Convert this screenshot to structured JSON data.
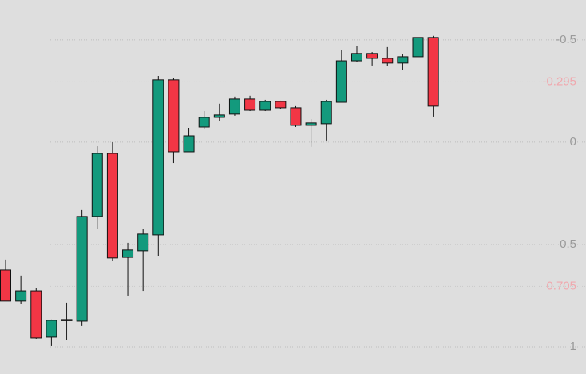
{
  "chart_data": {
    "type": "candlestick",
    "y_inverted": true,
    "ylim": [
      -0.695,
      1.133
    ],
    "yticks": [
      -0.5,
      0,
      0.5,
      1
    ],
    "price_lines": [
      -0.295,
      0.705
    ],
    "grid": true,
    "up_color": "#139a7d",
    "down_color": "#f23645",
    "doji_color": "#222222",
    "tick_color": "#9a9a9a",
    "price_line_color": "#f0a8ae",
    "open": [
      0.625,
      0.777,
      0.727,
      0.953,
      0.867,
      0.875,
      0.363,
      0.055,
      0.563,
      0.531,
      0.453,
      -0.305,
      0.047,
      -0.074,
      -0.121,
      -0.137,
      -0.211,
      -0.156,
      -0.199,
      -0.168,
      -0.082,
      -0.09,
      -0.195,
      -0.398,
      -0.434,
      -0.41,
      -0.387,
      -0.418,
      -0.512
    ],
    "close": [
      0.777,
      0.727,
      0.957,
      0.871,
      0.867,
      0.363,
      0.055,
      0.566,
      0.527,
      0.449,
      -0.305,
      0.047,
      -0.031,
      -0.121,
      -0.133,
      -0.211,
      -0.156,
      -0.199,
      -0.168,
      -0.082,
      -0.094,
      -0.199,
      -0.398,
      -0.434,
      -0.41,
      -0.387,
      -0.418,
      -0.512,
      -0.176
    ],
    "low": [
      0.574,
      0.652,
      0.715,
      0.867,
      0.785,
      0.332,
      0.02,
      0.0,
      0.492,
      0.426,
      -0.324,
      -0.316,
      -0.07,
      -0.152,
      -0.188,
      -0.223,
      -0.227,
      -0.207,
      -0.203,
      -0.176,
      -0.113,
      -0.207,
      -0.449,
      -0.469,
      -0.441,
      -0.465,
      -0.43,
      -0.52,
      -0.52
    ],
    "high": [
      0.777,
      0.793,
      0.961,
      0.996,
      0.965,
      0.898,
      0.426,
      0.582,
      0.75,
      0.727,
      0.555,
      0.102,
      0.047,
      -0.066,
      -0.102,
      -0.129,
      -0.152,
      -0.152,
      -0.16,
      -0.074,
      0.023,
      -0.008,
      -0.195,
      -0.391,
      -0.375,
      -0.371,
      -0.352,
      -0.395,
      -0.125
    ]
  }
}
